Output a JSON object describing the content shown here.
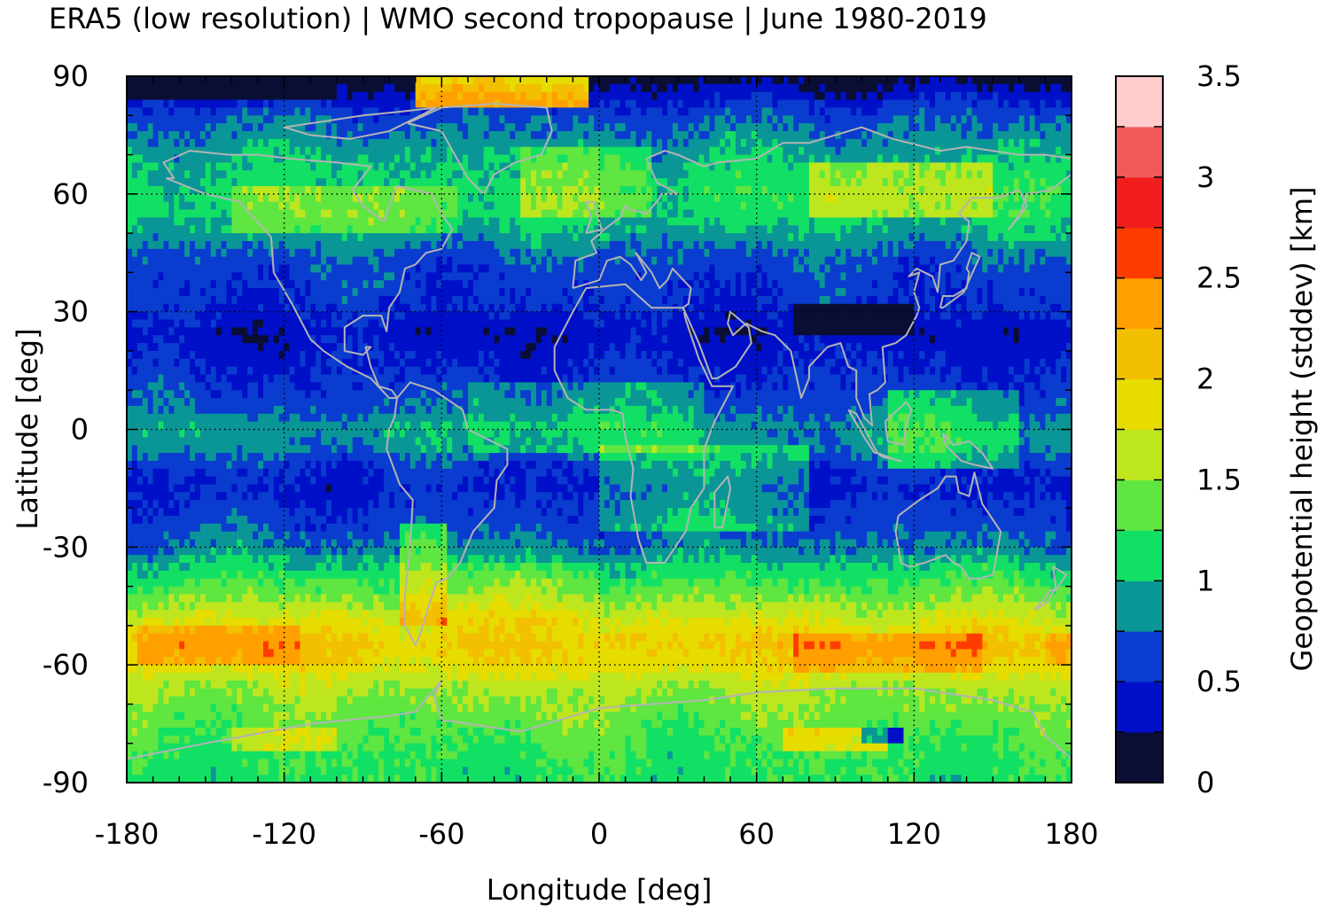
{
  "chart_data": {
    "type": "heatmap",
    "title": "ERA5 (low resolution) | WMO second tropopause | June 1980-2019",
    "xlabel": "Longitude [deg]",
    "ylabel": "Latitude [deg]",
    "xlim": [
      -180,
      180
    ],
    "ylim": [
      -90,
      90
    ],
    "x_ticks": [
      "-180",
      "-120",
      "-60",
      "0",
      "60",
      "120",
      "180"
    ],
    "y_ticks": [
      "90",
      "60",
      "30",
      "0",
      "-30",
      "-60",
      "-90"
    ],
    "x_tick_values": [
      -180,
      -120,
      -60,
      0,
      60,
      120,
      180
    ],
    "y_tick_values": [
      90,
      60,
      30,
      0,
      -30,
      -60,
      -90
    ],
    "grid": true,
    "grid_style": "dotted",
    "coastlines": true,
    "colorbar": {
      "label": "Geopotential height (stddev) [km]",
      "range": [
        0,
        3.5
      ],
      "ticks": [
        "0",
        "0.5",
        "1",
        "1.5",
        "2",
        "2.5",
        "3",
        "3.5"
      ],
      "tick_values": [
        0,
        0.5,
        1,
        1.5,
        2,
        2.5,
        3,
        3.5
      ],
      "step": 0.25,
      "colors": [
        "#0b0e34",
        "#0010c8",
        "#0a3ccf",
        "#0a9696",
        "#12e065",
        "#5fe640",
        "#bee61e",
        "#e6dc00",
        "#f2c000",
        "#ffa000",
        "#ff3c00",
        "#f21e1e",
        "#f05a5a",
        "#ffcccc"
      ]
    },
    "zonal_profile_km": {
      "latitudes": [
        90,
        85,
        80,
        75,
        70,
        65,
        60,
        55,
        50,
        45,
        40,
        35,
        30,
        25,
        20,
        15,
        10,
        5,
        0,
        -5,
        -10,
        -15,
        -20,
        -25,
        -30,
        -35,
        -40,
        -45,
        -50,
        -55,
        -60,
        -65,
        -70,
        -75,
        -80,
        -85,
        -90
      ],
      "values": [
        0.1,
        0.4,
        0.65,
        0.8,
        0.95,
        1.05,
        1.15,
        1.1,
        0.95,
        0.72,
        0.6,
        0.55,
        0.5,
        0.35,
        0.4,
        0.5,
        0.6,
        0.7,
        0.9,
        0.8,
        0.55,
        0.45,
        0.55,
        0.65,
        0.8,
        1.05,
        1.3,
        1.55,
        1.85,
        2.05,
        1.9,
        1.6,
        1.45,
        1.35,
        1.25,
        1.2,
        1.15
      ]
    },
    "regional_anomalies": [
      {
        "lon": [
          -175,
          -115
        ],
        "lat": [
          -60,
          -50
        ],
        "delta_km": 0.4
      },
      {
        "lon": [
          75,
          145
        ],
        "lat": [
          -62,
          -52
        ],
        "delta_km": 0.4
      },
      {
        "lon": [
          170,
          180
        ],
        "lat": [
          -60,
          -52
        ],
        "delta_km": 0.3
      },
      {
        "lon": [
          -75,
          -58
        ],
        "lat": [
          -50,
          -25
        ],
        "delta_km": 0.5
      },
      {
        "lon": [
          -60,
          0
        ],
        "lat": [
          -50,
          -35
        ],
        "delta_km": 0.15
      },
      {
        "lon": [
          0,
          80
        ],
        "lat": [
          -25,
          -5
        ],
        "delta_km": 0.35
      },
      {
        "lon": [
          75,
          120
        ],
        "lat": [
          25,
          32
        ],
        "delta_km": -0.45
      },
      {
        "lon": [
          -50,
          40
        ],
        "lat": [
          -5,
          12
        ],
        "delta_km": 0.25
      },
      {
        "lon": [
          -140,
          -55
        ],
        "lat": [
          50,
          62
        ],
        "delta_km": 0.3
      },
      {
        "lon": [
          -30,
          20
        ],
        "lat": [
          55,
          72
        ],
        "delta_km": 0.3
      },
      {
        "lon": [
          80,
          150
        ],
        "lat": [
          55,
          68
        ],
        "delta_km": 0.5
      },
      {
        "lon": [
          -70,
          -5
        ],
        "lat": [
          83,
          90
        ],
        "delta_km": 1.8
      },
      {
        "lon": [
          -180,
          -100
        ],
        "lat": [
          85,
          90
        ],
        "delta_km": -0.5
      },
      {
        "lon": [
          70,
          110
        ],
        "lat": [
          -82,
          -76
        ],
        "delta_km": 0.55
      },
      {
        "lon": [
          -140,
          -100
        ],
        "lat": [
          -82,
          -76
        ],
        "delta_km": 0.4
      },
      {
        "lon": [
          100,
          115
        ],
        "lat": [
          -80,
          -76
        ],
        "delta_km": -0.9
      },
      {
        "lon": [
          110,
          160
        ],
        "lat": [
          -10,
          10
        ],
        "delta_km": 0.35
      }
    ],
    "noise_amplitude_km": 0.12
  }
}
